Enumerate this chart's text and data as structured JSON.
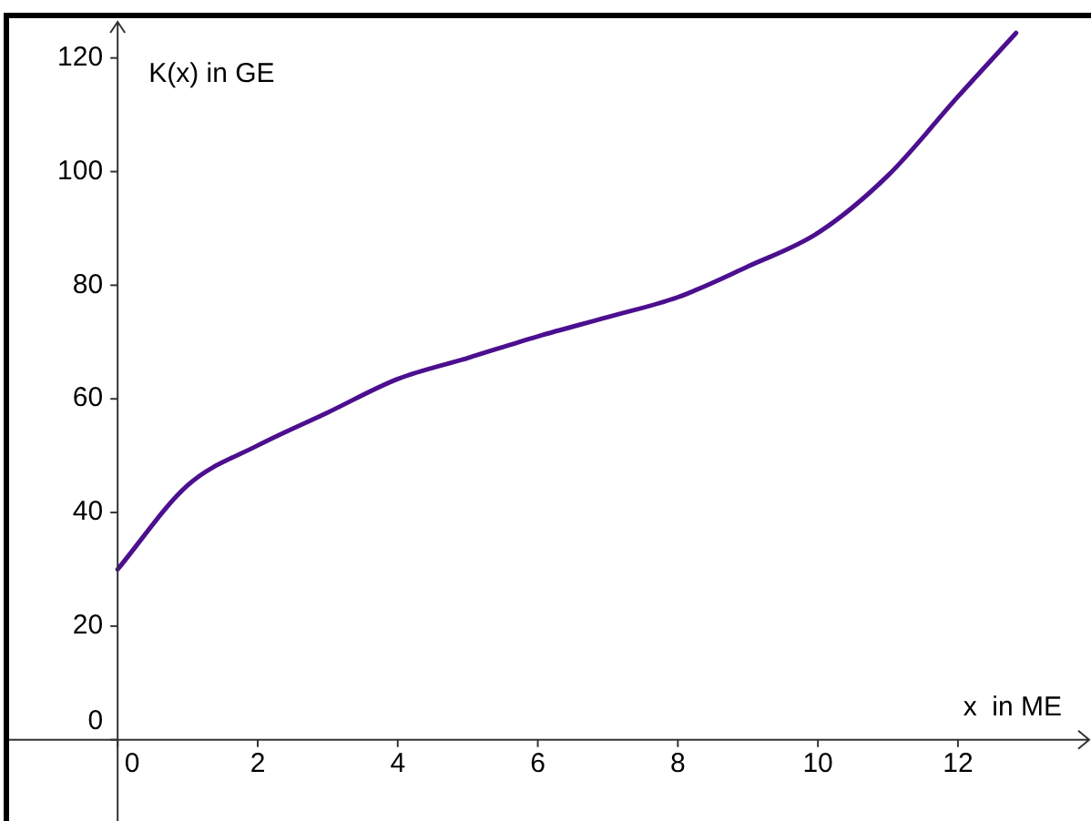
{
  "chart_data": {
    "type": "line",
    "xlabel": "x  in ME",
    "ylabel": "K(x) in GE",
    "series": [
      {
        "color": "#4b0f8f",
        "x": [
          0,
          1,
          2,
          3,
          4,
          5,
          6,
          7,
          8,
          9,
          10,
          11,
          12,
          12.83
        ],
        "values": [
          30,
          44.8,
          51.8,
          57.6,
          63.5,
          67.2,
          71,
          74.4,
          77.9,
          83.3,
          89.2,
          99.3,
          113.2,
          124.4
        ]
      }
    ],
    "xlim": [
      -1.55,
      13.9
    ],
    "ylim": [
      -14.3,
      127
    ],
    "xticks": [
      0,
      2,
      4,
      6,
      8,
      10,
      12
    ],
    "yticks": [
      0,
      20,
      40,
      60,
      80,
      100,
      120
    ],
    "grid": false,
    "legend": false,
    "marker": "none",
    "line_style": "solid"
  }
}
